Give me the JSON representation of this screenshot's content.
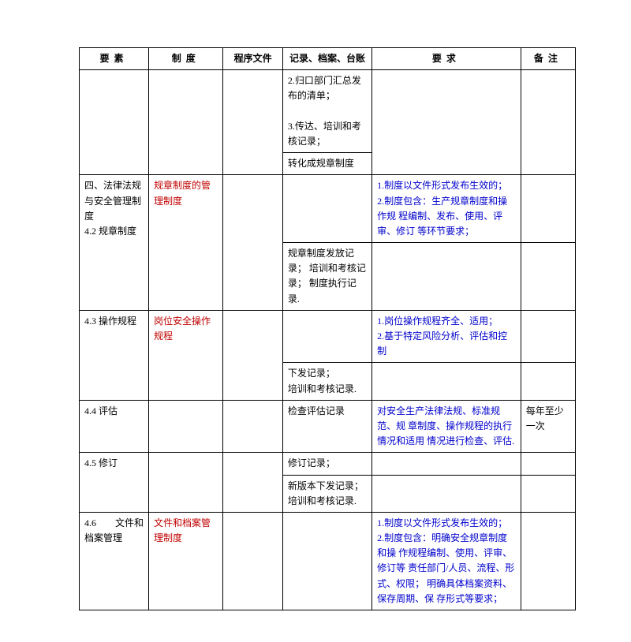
{
  "headers": {
    "c1": "要素",
    "c2": "制度",
    "c3": "程序文件",
    "c4": "记录、档案、台账",
    "c5": "要求",
    "c6": "备注"
  },
  "rows": {
    "r1": {
      "c4": "2.归口部门汇总发布的清单；\n\n   3.传达、培训和考核记录；"
    },
    "r2": {
      "c4": "转化成规章制度"
    },
    "r3": {
      "c1": "四、法律法规与安全管理制度\n4.2 规章制度",
      "c2": "规章制度的管理制度",
      "c5": "1.制度以文件形式发布生效的；\n   2.制度包含：生产规章制度和操作规   程编制、发布、使用、评审、修订   等环节要求；"
    },
    "r4": {
      "c4": "规章制度发放记录；   培训和考核记录；   制度执行记录."
    },
    "r5": {
      "c1": "4.3 操作规程",
      "c2": "岗位安全操作规程",
      "c5": "1.岗位操作规程齐全、适用；\n   2.基于特定风险分析、评估和控制"
    },
    "r6": {
      "c4": "下发记录；\n培训和考核记录."
    },
    "r7": {
      "c1": "4.4 评估",
      "c4": "检查评估记录",
      "c5": "对安全生产法律法规、标准规范、规   章制度、操作规程的执行情况和适用   情况进行检查、评估.",
      "c6": "每年至少一次"
    },
    "r8": {
      "c1": "4.5 修订",
      "c4": "修订记录；"
    },
    "r9": {
      "c4": "新版本下发记录；\n培训和考核记录."
    },
    "r10": {
      "c1": "4.6　　文件和档案管理",
      "c2": "文件和档案管理制度",
      "c5": "1.制度以文件形式发布生效的；     2.制度包含：明确安全规章制度和操   作规程编制、使用、评审、修订等   责任部门/人员、流程、形式、权限；   明确具体档案资料、保存周期、保   存形式等要求；"
    }
  }
}
